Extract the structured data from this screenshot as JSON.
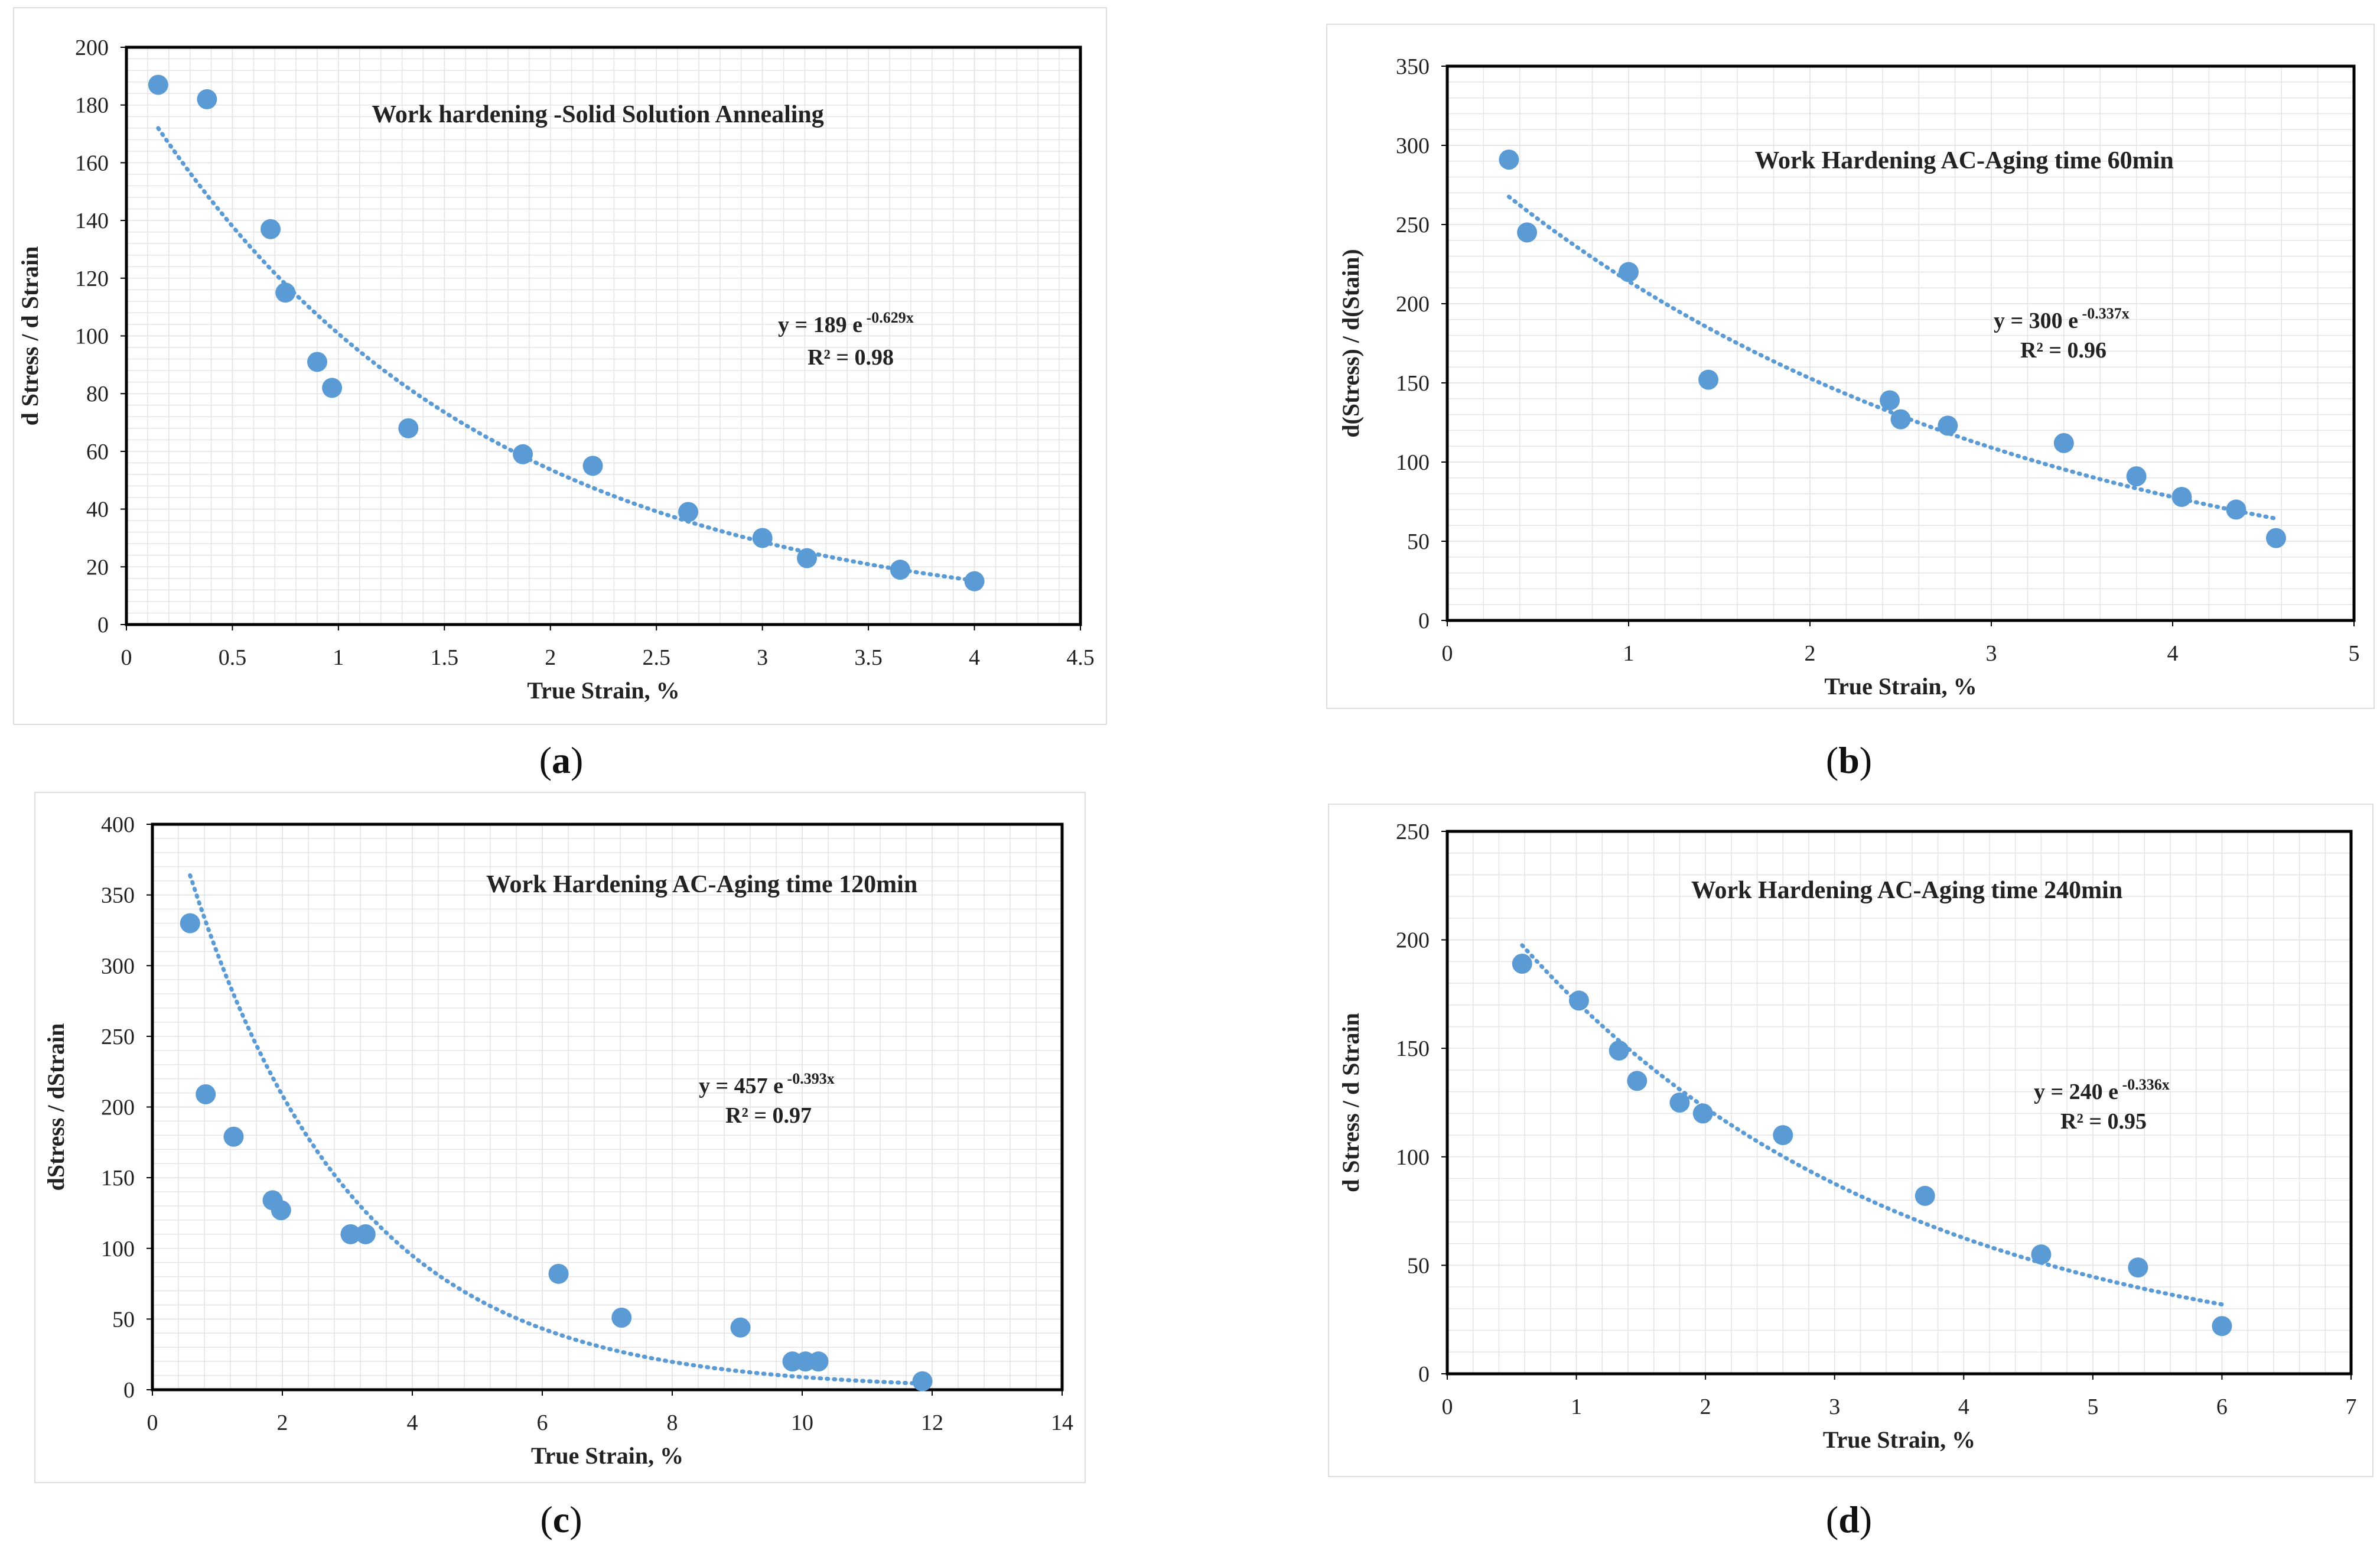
{
  "colors": {
    "point": "#5b9bd5",
    "trend": "#5b9bd5",
    "grid": "#e4e4e4",
    "axis": "#000000"
  },
  "chart_data": [
    {
      "id": "a",
      "type": "scatter",
      "caption": "a",
      "title": "Work hardening -Solid Solution Annealing",
      "xlabel": "True Strain, %",
      "ylabel": "d Stress / d Strain",
      "xlim": [
        0,
        4.5
      ],
      "ylim": [
        0,
        200
      ],
      "xticks": [
        0,
        0.5,
        1,
        1.5,
        2,
        2.5,
        3,
        3.5,
        4,
        4.5
      ],
      "xtick_labels": [
        "0",
        "0.5",
        "1",
        "1.5",
        "2",
        "2.5",
        "3",
        "3.5",
        "4",
        "4.5"
      ],
      "yticks": [
        0,
        20,
        40,
        60,
        80,
        100,
        120,
        140,
        160,
        180,
        200
      ],
      "ytick_labels": [
        "0",
        "20",
        "40",
        "60",
        "80",
        "100",
        "120",
        "140",
        "160",
        "180",
        "200"
      ],
      "points": [
        [
          0.15,
          187
        ],
        [
          0.38,
          182
        ],
        [
          0.68,
          137
        ],
        [
          0.75,
          115
        ],
        [
          0.9,
          91
        ],
        [
          0.97,
          82
        ],
        [
          1.33,
          68
        ],
        [
          1.87,
          59
        ],
        [
          2.2,
          55
        ],
        [
          2.65,
          39
        ],
        [
          3.0,
          30
        ],
        [
          3.21,
          23
        ],
        [
          3.65,
          19
        ],
        [
          4.0,
          15
        ]
      ],
      "trend": {
        "type": "exponential",
        "a": 189,
        "b": -0.629,
        "x_from": 0.15,
        "x_to": 4.0
      },
      "equation": "y = 189 e",
      "equation_exp": "-0.629x",
      "r2": "R² = 0.98"
    },
    {
      "id": "b",
      "type": "scatter",
      "caption": "b",
      "title": "Work Hardening AC-Aging time 60min",
      "xlabel": "True Strain, %",
      "ylabel": "d(Stress) / d(Stain)",
      "xlim": [
        0,
        5
      ],
      "ylim": [
        0,
        350
      ],
      "xticks": [
        0,
        1,
        2,
        3,
        4,
        5
      ],
      "xtick_labels": [
        "0",
        "1",
        "2",
        "3",
        "4",
        "5"
      ],
      "yticks": [
        0,
        50,
        100,
        150,
        200,
        250,
        300,
        350
      ],
      "ytick_labels": [
        "0",
        "50",
        "100",
        "150",
        "200",
        "250",
        "300",
        "350"
      ],
      "points": [
        [
          0.34,
          291
        ],
        [
          0.44,
          245
        ],
        [
          1.0,
          220
        ],
        [
          1.44,
          152
        ],
        [
          2.44,
          139
        ],
        [
          2.5,
          127
        ],
        [
          2.76,
          123
        ],
        [
          3.4,
          112
        ],
        [
          3.8,
          91
        ],
        [
          4.05,
          78
        ],
        [
          4.35,
          70
        ],
        [
          4.57,
          52
        ]
      ],
      "trend": {
        "type": "exponential",
        "a": 300,
        "b": -0.337,
        "x_from": 0.34,
        "x_to": 4.57
      },
      "equation": "y = 300 e",
      "equation_exp": "-0.337x",
      "r2": "R² = 0.96"
    },
    {
      "id": "c",
      "type": "scatter",
      "caption": "c",
      "title": "Work Hardening AC-Aging time 120min",
      "xlabel": "True Strain, %",
      "ylabel": "dStress / dStrain",
      "xlim": [
        0,
        14
      ],
      "ylim": [
        0,
        400
      ],
      "xticks": [
        0,
        2,
        4,
        6,
        8,
        10,
        12,
        14
      ],
      "xtick_labels": [
        "0",
        "2",
        "4",
        "6",
        "8",
        "10",
        "12",
        "14"
      ],
      "yticks": [
        0,
        50,
        100,
        150,
        200,
        250,
        300,
        350,
        400
      ],
      "ytick_labels": [
        "0",
        "50",
        "100",
        "150",
        "200",
        "250",
        "300",
        "350",
        "400"
      ],
      "points": [
        [
          0.58,
          330
        ],
        [
          0.82,
          209
        ],
        [
          1.25,
          179
        ],
        [
          1.85,
          134
        ],
        [
          1.98,
          127
        ],
        [
          3.05,
          110
        ],
        [
          3.28,
          110
        ],
        [
          6.25,
          82
        ],
        [
          7.22,
          51
        ],
        [
          9.05,
          44
        ],
        [
          9.85,
          20
        ],
        [
          10.05,
          20
        ],
        [
          10.25,
          20
        ],
        [
          11.85,
          6
        ]
      ],
      "trend": {
        "type": "exponential",
        "a": 457,
        "b": -0.393,
        "x_from": 0.58,
        "x_to": 11.85
      },
      "equation": "y = 457 e",
      "equation_exp": "-0.393x",
      "r2": "R² = 0.97"
    },
    {
      "id": "d",
      "type": "scatter",
      "caption": "d",
      "title": "Work Hardening AC-Aging time 240min",
      "xlabel": "True Strain, %",
      "ylabel": "d Stress / d Strain",
      "xlim": [
        0,
        7
      ],
      "ylim": [
        0,
        250
      ],
      "xticks": [
        0,
        1,
        2,
        3,
        4,
        5,
        6,
        7
      ],
      "xtick_labels": [
        "0",
        "1",
        "2",
        "3",
        "4",
        "5",
        "6",
        "7"
      ],
      "yticks": [
        0,
        50,
        100,
        150,
        200,
        250
      ],
      "ytick_labels": [
        "0",
        "50",
        "100",
        "150",
        "200",
        "250"
      ],
      "points": [
        [
          0.58,
          189
        ],
        [
          1.02,
          172
        ],
        [
          1.33,
          149
        ],
        [
          1.47,
          135
        ],
        [
          1.8,
          125
        ],
        [
          1.98,
          120
        ],
        [
          2.6,
          110
        ],
        [
          3.7,
          82
        ],
        [
          4.6,
          55
        ],
        [
          5.35,
          49
        ],
        [
          6.0,
          22
        ]
      ],
      "trend": {
        "type": "exponential",
        "a": 240,
        "b": -0.336,
        "x_from": 0.58,
        "x_to": 6.0
      },
      "equation": "y = 240 e",
      "equation_exp": "-0.336x",
      "r2": "R² = 0.95"
    }
  ]
}
